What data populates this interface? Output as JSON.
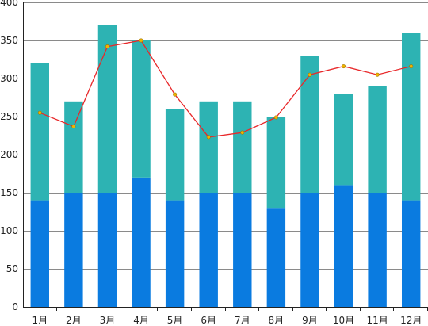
{
  "chart_data": {
    "type": "bar",
    "stacked": true,
    "categories": [
      "1月",
      "2月",
      "3月",
      "4月",
      "5月",
      "6月",
      "7月",
      "8月",
      "9月",
      "10月",
      "11月",
      "12月"
    ],
    "series": [
      {
        "values": [
          140,
          150,
          150,
          170,
          140,
          150,
          150,
          130,
          150,
          160,
          150,
          140
        ],
        "color": "#0a7be0"
      },
      {
        "values": [
          180,
          120,
          220,
          180,
          120,
          120,
          120,
          120,
          180,
          120,
          140,
          220
        ],
        "color": "#2db3b3"
      }
    ],
    "line": {
      "values": [
        255,
        237,
        342,
        350,
        279,
        223,
        229,
        249,
        305,
        316,
        305,
        316
      ],
      "color": "#e8282a",
      "marker_color": "#f0b400"
    },
    "ylim": [
      0,
      400
    ],
    "yticks": [
      0,
      50,
      100,
      150,
      200,
      250,
      300,
      350,
      400
    ],
    "grid": true,
    "legend": "none",
    "title": "",
    "xlabel": "",
    "ylabel": ""
  }
}
